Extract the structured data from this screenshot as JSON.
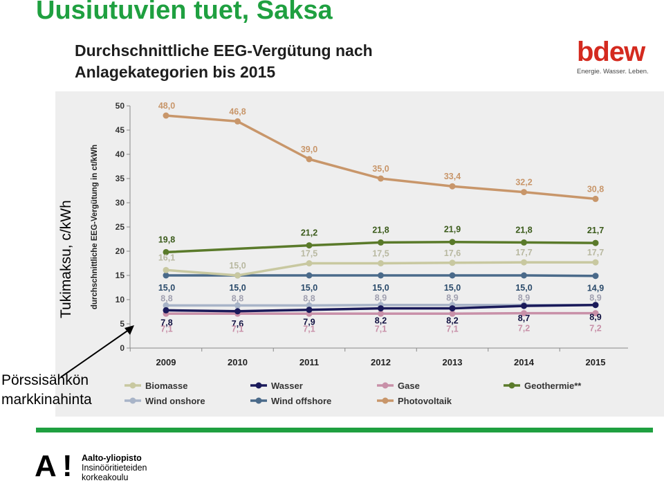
{
  "slide_title": "Uusiutuvien tuet, Saksa",
  "chart_heading_line1": "Durchschnittliche EEG-Vergütung nach",
  "chart_heading_line2": "Anlagekategorien bis 2015",
  "logo": {
    "word": "bdew",
    "tagline": "Energie. Wasser. Leben."
  },
  "side_label": "Tukimaksu, c/kWh",
  "annotation_line1": "Pörssisähkön",
  "annotation_line2": "markkinahinta",
  "footer": {
    "line1": "Aalto-yliopisto",
    "line2": "Insinööritieteiden",
    "line3": "korkeakoulu"
  },
  "colors": {
    "accent": "#1fa040",
    "bdew_red": "#d42a1f"
  },
  "chart_data": {
    "type": "line",
    "ylabel": "durchschnittliche EEG-Vergütung in ct/kWh",
    "ylim": [
      0,
      50
    ],
    "yticks": [
      0,
      5,
      10,
      15,
      20,
      25,
      30,
      35,
      40,
      45,
      50
    ],
    "categories": [
      "2009",
      "2010",
      "2011",
      "2012",
      "2013",
      "2014",
      "2015"
    ],
    "grid": false,
    "legend": "bottom",
    "series": [
      {
        "name": "Photovoltaik",
        "color": "#c8966a",
        "values": [
          48.0,
          46.8,
          39.0,
          35.0,
          33.4,
          32.2,
          30.8
        ],
        "labels": [
          "48,0",
          "46,8",
          "39,0",
          "35,0",
          "33,4",
          "32,2",
          "30,8"
        ]
      },
      {
        "name": "Geothermie**",
        "color": "#5a7a2a",
        "values": [
          19.8,
          null,
          21.2,
          21.8,
          21.9,
          21.8,
          21.7
        ],
        "labels": [
          "19,8",
          "",
          "21,2",
          "21,8",
          "21,9",
          "21,8",
          "21,7"
        ]
      },
      {
        "name": "Biomasse",
        "color": "#c8c8a0",
        "values": [
          16.1,
          15.0,
          17.5,
          17.5,
          17.6,
          17.7,
          17.7
        ],
        "labels": [
          "16,1",
          "15,0",
          "17,5",
          "17,5",
          "17,6",
          "17,7",
          "17,7"
        ]
      },
      {
        "name": "Wind offshore",
        "color": "#4a6a8a",
        "values": [
          15.0,
          15.0,
          15.0,
          15.0,
          15.0,
          15.0,
          14.9
        ],
        "labels": [
          "15,0",
          "15,0",
          "15,0",
          "15,0",
          "15,0",
          "15,0",
          "14,9"
        ]
      },
      {
        "name": "Wind onshore",
        "color": "#a8b4c8",
        "values": [
          8.8,
          8.8,
          8.8,
          8.9,
          8.9,
          8.9,
          8.9
        ],
        "labels": [
          "8,8",
          "8,8",
          "8,8",
          "8,9",
          "8,9",
          "8,9",
          "8,9"
        ]
      },
      {
        "name": "Wasser",
        "color": "#1a1a5a",
        "values": [
          7.8,
          7.6,
          7.9,
          8.2,
          8.2,
          8.7,
          8.9
        ],
        "labels": [
          "7,8",
          "7,6",
          "7,9",
          "8,2",
          "8,2",
          "8,7",
          "8,9"
        ]
      },
      {
        "name": "Gase",
        "color": "#c890a8",
        "values": [
          7.1,
          7.1,
          7.1,
          7.1,
          7.1,
          7.2,
          7.2
        ],
        "labels": [
          "7,1",
          "7,1",
          "7,1",
          "7,1",
          "7,1",
          "7,2",
          "7,2"
        ]
      }
    ],
    "legend_order": [
      "Biomasse",
      "Wasser",
      "Gase",
      "Geothermie**",
      "Wind onshore",
      "Wind offshore",
      "Photovoltaik"
    ]
  }
}
